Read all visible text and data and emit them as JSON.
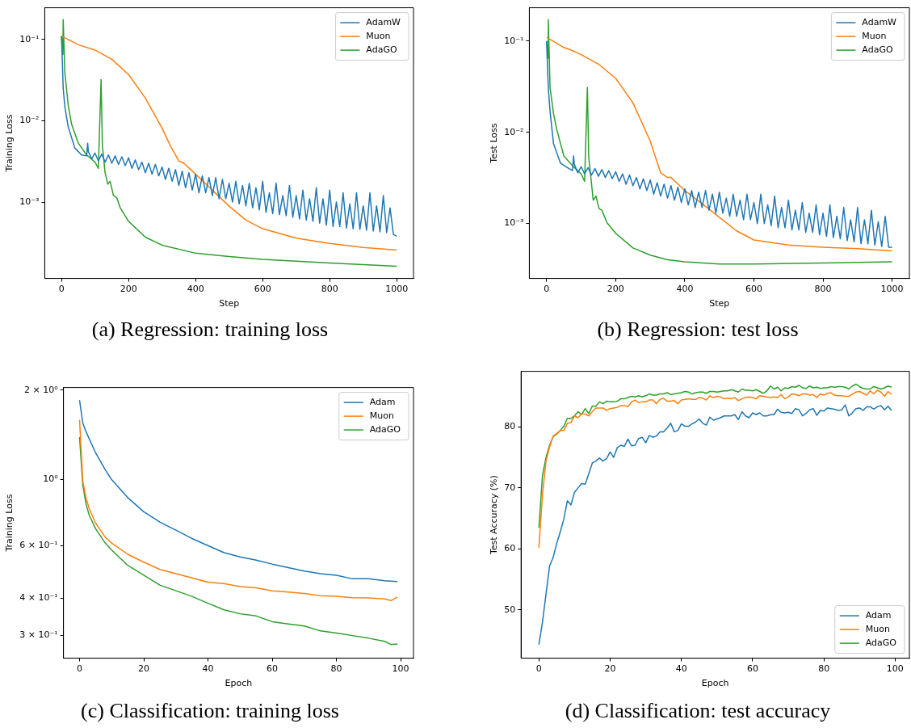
{
  "chart_data": [
    {
      "type": "line",
      "title": "(a) Regression: training loss",
      "xlabel": "Step",
      "ylabel": "Training Loss",
      "log": "y",
      "legend": "top right",
      "xlim": [
        -50,
        1050
      ],
      "xticks": [
        0,
        200,
        400,
        600,
        800,
        1000
      ],
      "ylim": [
        0.000115,
        0.245
      ],
      "yticks": [
        {
          "value": 0.1,
          "label": "10⁻¹"
        },
        {
          "value": 0.01,
          "label": "10⁻²"
        },
        {
          "value": 0.001,
          "label": "10⁻³"
        }
      ],
      "series": [
        {
          "name": "AdamW",
          "color": "#1f77b4",
          "x": [
            0,
            5,
            10,
            20,
            40,
            60,
            75,
            78,
            80,
            90,
            100,
            110,
            120,
            130,
            140,
            150,
            160,
            170,
            180,
            190,
            200,
            210,
            220,
            230,
            240,
            250,
            260,
            270,
            280,
            290,
            300,
            310,
            320,
            330,
            340,
            350,
            360,
            370,
            380,
            390,
            400,
            410,
            420,
            430,
            440,
            450,
            460,
            470,
            480,
            490,
            500,
            510,
            520,
            530,
            540,
            550,
            560,
            570,
            580,
            590,
            600,
            610,
            620,
            630,
            640,
            650,
            660,
            670,
            680,
            690,
            700,
            710,
            720,
            730,
            740,
            750,
            760,
            770,
            780,
            790,
            800,
            810,
            820,
            830,
            840,
            850,
            860,
            870,
            880,
            890,
            900,
            910,
            920,
            930,
            940,
            950,
            960,
            970,
            980,
            990,
            1000
          ],
          "values": [
            0.11,
            0.025,
            0.0148,
            0.0084,
            0.0046,
            0.0038,
            0.0037,
            0.0053,
            0.0042,
            0.0034,
            0.004,
            0.0032,
            0.0039,
            0.0031,
            0.0038,
            0.003,
            0.0037,
            0.0029,
            0.0036,
            0.0028,
            0.0035,
            0.0026,
            0.0033,
            0.0025,
            0.0031,
            0.0023,
            0.003,
            0.0022,
            0.0029,
            0.0021,
            0.0027,
            0.0019,
            0.0026,
            0.0018,
            0.0025,
            0.0016,
            0.0024,
            0.0015,
            0.0023,
            0.0014,
            0.0022,
            0.0013,
            0.0021,
            0.0013,
            0.002,
            0.0012,
            0.002,
            0.0011,
            0.0019,
            0.0011,
            0.0017,
            0.001,
            0.0018,
            0.00095,
            0.0016,
            0.0009,
            0.0017,
            0.00085,
            0.0015,
            0.0008,
            0.0018,
            0.00075,
            0.0013,
            0.00072,
            0.0017,
            0.0007,
            0.0012,
            0.00068,
            0.0016,
            0.00065,
            0.0012,
            0.00062,
            0.0014,
            0.0006,
            0.0011,
            0.00058,
            0.0015,
            0.00055,
            0.0011,
            0.00052,
            0.0014,
            0.0005,
            0.001,
            0.0005,
            0.0013,
            0.00048,
            0.00095,
            0.00047,
            0.0013,
            0.00046,
            0.0009,
            0.00045,
            0.0013,
            0.00044,
            0.0009,
            0.00043,
            0.0012,
            0.00042,
            0.00085,
            0.0004,
            0.00038
          ]
        },
        {
          "name": "Muon",
          "color": "#ff7f0e",
          "x": [
            0,
            50,
            100,
            150,
            200,
            250,
            300,
            325,
            350,
            365,
            400,
            450,
            500,
            550,
            600,
            700,
            800,
            900,
            1000
          ],
          "values": [
            0.11,
            0.086,
            0.074,
            0.057,
            0.037,
            0.019,
            0.0081,
            0.0049,
            0.0032,
            0.003,
            0.0022,
            0.0014,
            0.00089,
            0.0006,
            0.00047,
            0.00036,
            0.00031,
            0.000276,
            0.000257
          ]
        },
        {
          "name": "AdaGO",
          "color": "#2ca02c",
          "x": [
            0,
            4,
            5,
            10,
            20,
            30,
            50,
            75,
            100,
            110,
            118,
            122,
            130,
            138,
            145,
            155,
            165,
            175,
            200,
            250,
            300,
            400,
            500,
            600,
            800,
            1000
          ],
          "values": [
            0.11,
            0.065,
            0.175,
            0.039,
            0.0155,
            0.0091,
            0.0053,
            0.0038,
            0.0031,
            0.0026,
            0.032,
            0.0049,
            0.0023,
            0.00166,
            0.0018,
            0.0012,
            0.00113,
            0.00085,
            0.00058,
            0.00037,
            0.000295,
            0.000235,
            0.000214,
            0.000197,
            0.000178,
            0.000162
          ]
        }
      ]
    },
    {
      "type": "line",
      "title": "(b) Regression: test loss",
      "xlabel": "Step",
      "ylabel": "Test Loss",
      "log": "y",
      "legend": "top right",
      "xlim": [
        -50,
        1050
      ],
      "xticks": [
        0,
        200,
        400,
        600,
        800,
        1000
      ],
      "ylim": [
        0.00025,
        0.232
      ],
      "yticks": [
        {
          "value": 0.1,
          "label": "10⁻¹"
        },
        {
          "value": 0.01,
          "label": "10⁻²"
        },
        {
          "value": 0.001,
          "label": "10⁻³"
        }
      ],
      "series": [
        {
          "name": "AdamW",
          "color": "#1f77b4",
          "x": [
            0,
            5,
            10,
            20,
            40,
            60,
            75,
            78,
            80,
            90,
            100,
            110,
            120,
            130,
            140,
            150,
            160,
            170,
            180,
            190,
            200,
            210,
            220,
            230,
            240,
            250,
            260,
            270,
            280,
            290,
            300,
            310,
            320,
            330,
            340,
            350,
            360,
            370,
            380,
            390,
            400,
            410,
            420,
            430,
            440,
            450,
            460,
            470,
            480,
            490,
            500,
            510,
            520,
            530,
            540,
            550,
            560,
            570,
            580,
            590,
            600,
            610,
            620,
            630,
            640,
            650,
            660,
            670,
            680,
            690,
            700,
            710,
            720,
            730,
            740,
            750,
            760,
            770,
            780,
            790,
            800,
            810,
            820,
            830,
            840,
            850,
            860,
            870,
            880,
            890,
            900,
            910,
            920,
            930,
            940,
            950,
            960,
            970,
            980,
            990,
            1000
          ],
          "values": [
            0.1,
            0.03,
            0.017,
            0.0075,
            0.0046,
            0.0041,
            0.0038,
            0.0055,
            0.0045,
            0.0036,
            0.0042,
            0.0035,
            0.0041,
            0.0034,
            0.004,
            0.0033,
            0.0039,
            0.0032,
            0.0038,
            0.0031,
            0.0037,
            0.0029,
            0.0035,
            0.0027,
            0.0034,
            0.0026,
            0.0032,
            0.0024,
            0.0031,
            0.0023,
            0.003,
            0.0021,
            0.0028,
            0.002,
            0.0027,
            0.0019,
            0.0026,
            0.0018,
            0.0025,
            0.0017,
            0.0024,
            0.0016,
            0.0023,
            0.0015,
            0.0022,
            0.0015,
            0.0023,
            0.0014,
            0.0021,
            0.0013,
            0.0022,
            0.0013,
            0.0019,
            0.0012,
            0.0021,
            0.0012,
            0.0018,
            0.0011,
            0.0021,
            0.0011,
            0.0017,
            0.001,
            0.0021,
            0.001,
            0.0016,
            0.00095,
            0.002,
            0.0009,
            0.0015,
            0.0009,
            0.0018,
            0.00085,
            0.0014,
            0.00085,
            0.0017,
            0.0008,
            0.0013,
            0.0008,
            0.0016,
            0.00075,
            0.0013,
            0.00072,
            0.0016,
            0.0007,
            0.0012,
            0.00068,
            0.0015,
            0.00065,
            0.0011,
            0.00063,
            0.0015,
            0.0006,
            0.0011,
            0.0006,
            0.0014,
            0.00058,
            0.00105,
            0.00056,
            0.0012,
            0.00055,
            0.00055
          ]
        },
        {
          "name": "Muon",
          "color": "#ff7f0e",
          "x": [
            0,
            50,
            70,
            100,
            150,
            200,
            250,
            300,
            330,
            350,
            360,
            400,
            450,
            500,
            550,
            600,
            700,
            800,
            900,
            1000
          ],
          "values": [
            0.11,
            0.085,
            0.08,
            0.071,
            0.056,
            0.039,
            0.021,
            0.008,
            0.0036,
            0.0032,
            0.0032,
            0.0023,
            0.00165,
            0.00117,
            0.00083,
            0.00066,
            0.00058,
            0.00055,
            0.00053,
            0.0005
          ]
        },
        {
          "name": "AdaGO",
          "color": "#2ca02c",
          "x": [
            0,
            4,
            5,
            10,
            20,
            30,
            50,
            75,
            100,
            110,
            118,
            122,
            135,
            143,
            152,
            160,
            175,
            200,
            250,
            300,
            350,
            400,
            500,
            600,
            800,
            1000
          ],
          "values": [
            0.1,
            0.065,
            0.172,
            0.031,
            0.016,
            0.0105,
            0.0055,
            0.0043,
            0.0035,
            0.0029,
            0.031,
            0.0053,
            0.0018,
            0.002,
            0.00145,
            0.0014,
            0.00102,
            0.00078,
            0.00054,
            0.00045,
            0.0004,
            0.00038,
            0.00036,
            0.00036,
            0.00037,
            0.00038
          ]
        }
      ]
    },
    {
      "type": "line",
      "title": "(c) Classification: training loss",
      "xlabel": "Epoch",
      "ylabel": "Training Loss",
      "log": "y",
      "legend": "top right",
      "xlim": [
        -5,
        104
      ],
      "xticks": [
        0,
        20,
        40,
        60,
        80,
        100
      ],
      "ylim": [
        0.251,
        2.04
      ],
      "yticks": [
        {
          "value": 2,
          "label": "2 × 10⁰"
        },
        {
          "value": 1,
          "label": "10⁰"
        },
        {
          "value": 0.6,
          "label": "6 × 10⁻¹"
        },
        {
          "value": 0.4,
          "label": "4 × 10⁻¹"
        },
        {
          "value": 0.3,
          "label": "3 × 10⁻¹"
        }
      ],
      "series": [
        {
          "name": "Adam",
          "color": "#1f77b4",
          "x": [
            0,
            1,
            2,
            5,
            8,
            10,
            15,
            20,
            25,
            30,
            35,
            40,
            45,
            50,
            55,
            60,
            65,
            70,
            75,
            80,
            85,
            90,
            95,
            99
          ],
          "values": [
            1.85,
            1.55,
            1.45,
            1.23,
            1.08,
            1.0,
            0.87,
            0.78,
            0.72,
            0.676,
            0.634,
            0.6,
            0.568,
            0.55,
            0.536,
            0.52,
            0.506,
            0.493,
            0.483,
            0.477,
            0.464,
            0.464,
            0.457,
            0.454
          ]
        },
        {
          "name": "Muon",
          "color": "#ff7f0e",
          "x": [
            0,
            1,
            2,
            3,
            5,
            8,
            10,
            15,
            20,
            25,
            30,
            35,
            40,
            45,
            50,
            55,
            60,
            65,
            70,
            75,
            80,
            85,
            90,
            95,
            97,
            99
          ],
          "values": [
            1.59,
            0.99,
            0.87,
            0.8,
            0.714,
            0.64,
            0.612,
            0.561,
            0.528,
            0.499,
            0.483,
            0.467,
            0.452,
            0.447,
            0.437,
            0.433,
            0.423,
            0.419,
            0.414,
            0.407,
            0.405,
            0.401,
            0.4,
            0.397,
            0.392,
            0.403
          ]
        },
        {
          "name": "AdaGO",
          "color": "#2ca02c",
          "x": [
            0,
            1,
            2,
            3,
            5,
            8,
            10,
            15,
            20,
            25,
            30,
            35,
            40,
            45,
            50,
            55,
            60,
            65,
            70,
            75,
            80,
            85,
            90,
            95,
            97,
            99
          ],
          "values": [
            1.39,
            0.96,
            0.83,
            0.76,
            0.684,
            0.612,
            0.58,
            0.515,
            0.477,
            0.442,
            0.423,
            0.405,
            0.384,
            0.365,
            0.354,
            0.348,
            0.333,
            0.327,
            0.322,
            0.31,
            0.305,
            0.299,
            0.293,
            0.286,
            0.279,
            0.28
          ]
        }
      ]
    },
    {
      "type": "line",
      "title": "(d) Classification: test accuracy",
      "xlabel": "Epoch",
      "ylabel": "Test Accuracy (%)",
      "legend": "bottom right",
      "xlim": [
        -5,
        104
      ],
      "xticks": [
        0,
        20,
        40,
        60,
        80,
        100
      ],
      "ylim": [
        42.1,
        89.1
      ],
      "yticks": [
        50,
        60,
        70,
        80
      ],
      "x": [
        0,
        1,
        2,
        3,
        4,
        5,
        6,
        7,
        8,
        9,
        10,
        11,
        12,
        13,
        14,
        15,
        16,
        17,
        18,
        19,
        20,
        21,
        22,
        23,
        24,
        25,
        26,
        27,
        28,
        29,
        30,
        31,
        32,
        33,
        34,
        35,
        36,
        37,
        38,
        39,
        40,
        41,
        42,
        43,
        44,
        45,
        46,
        47,
        48,
        49,
        50,
        51,
        52,
        53,
        54,
        55,
        56,
        57,
        58,
        59,
        60,
        61,
        62,
        63,
        64,
        65,
        66,
        67,
        68,
        69,
        70,
        71,
        72,
        73,
        74,
        75,
        76,
        77,
        78,
        79,
        80,
        81,
        82,
        83,
        84,
        85,
        86,
        87,
        88,
        89,
        90,
        91,
        92,
        93,
        94,
        95,
        96,
        97,
        98,
        99
      ],
      "series": [
        {
          "name": "Adam",
          "color": "#1f77b4",
          "values": [
            44.3,
            48.0,
            52.6,
            57.2,
            58.6,
            60.9,
            62.8,
            64.9,
            67.9,
            67.2,
            69.3,
            70.0,
            70.7,
            70.6,
            72.3,
            74.1,
            74.4,
            74.9,
            74.4,
            74.8,
            75.9,
            75.0,
            76.6,
            77.0,
            76.8,
            78.0,
            76.9,
            77.0,
            78.1,
            78.3,
            77.4,
            78.6,
            78.3,
            78.5,
            79.2,
            79.2,
            79.8,
            80.6,
            79.2,
            79.4,
            80.5,
            80.1,
            80.1,
            80.5,
            80.8,
            81.3,
            80.6,
            80.3,
            81.6,
            81.1,
            81.3,
            81.5,
            81.8,
            81.8,
            81.8,
            82.0,
            81.2,
            82.5,
            81.8,
            81.5,
            82.3,
            82.0,
            82.3,
            81.8,
            81.8,
            82.0,
            82.0,
            82.9,
            82.4,
            82.3,
            82.4,
            82.2,
            83.0,
            82.8,
            81.8,
            82.2,
            82.8,
            83.0,
            81.9,
            82.7,
            82.6,
            83.1,
            83.0,
            82.9,
            82.7,
            82.8,
            83.6,
            81.8,
            82.3,
            83.0,
            83.1,
            82.7,
            83.3,
            83.3,
            82.9,
            83.3,
            83.5,
            82.8,
            83.4,
            82.7
          ]
        },
        {
          "name": "Muon",
          "color": "#ff7f0e",
          "values": [
            60.2,
            68.8,
            74.4,
            76.7,
            78.5,
            78.9,
            79.4,
            79.4,
            80.6,
            80.7,
            81.8,
            81.5,
            82.2,
            82.1,
            81.8,
            82.5,
            83.1,
            83.1,
            83.1,
            82.7,
            83.0,
            83.1,
            83.2,
            83.5,
            83.5,
            83.3,
            84.1,
            84.4,
            84.0,
            84.1,
            84.1,
            84.4,
            84.4,
            83.8,
            84.5,
            84.7,
            84.2,
            84.2,
            84.3,
            83.8,
            84.4,
            84.5,
            84.6,
            84.5,
            84.5,
            84.8,
            84.7,
            84.4,
            85.1,
            84.8,
            85.0,
            84.9,
            84.6,
            84.7,
            84.6,
            84.8,
            84.3,
            84.6,
            84.8,
            84.9,
            84.8,
            84.6,
            85.1,
            85.0,
            84.9,
            84.8,
            84.9,
            84.8,
            85.3,
            84.6,
            84.9,
            85.4,
            85.3,
            85.1,
            85.4,
            85.4,
            85.2,
            85.3,
            84.8,
            85.4,
            85.2,
            85.5,
            85.6,
            85.2,
            85.1,
            85.1,
            85.0,
            85.0,
            85.4,
            85.7,
            85.8,
            85.5,
            85.2,
            85.9,
            85.4,
            86.0,
            85.7,
            85.0,
            85.8,
            85.3
          ]
        },
        {
          "name": "AdaGO",
          "color": "#2ca02c",
          "values": [
            63.5,
            72.0,
            75.0,
            77.0,
            78.4,
            78.8,
            79.4,
            80.1,
            81.4,
            81.4,
            81.8,
            82.5,
            82.0,
            83.0,
            82.2,
            83.4,
            83.4,
            84.1,
            83.8,
            84.2,
            84.1,
            84.1,
            84.2,
            84.6,
            84.6,
            84.8,
            85.0,
            84.9,
            85.1,
            84.9,
            85.1,
            85.4,
            85.2,
            85.2,
            85.4,
            85.4,
            85.6,
            85.3,
            85.4,
            85.5,
            85.6,
            85.8,
            85.7,
            85.4,
            85.6,
            85.7,
            85.7,
            85.5,
            85.8,
            85.8,
            85.7,
            85.8,
            85.9,
            85.9,
            86.1,
            85.9,
            85.7,
            86.2,
            86.0,
            86.0,
            85.9,
            86.1,
            85.8,
            85.5,
            85.9,
            86.7,
            86.2,
            86.5,
            85.9,
            86.4,
            86.3,
            86.6,
            86.5,
            86.8,
            86.4,
            86.3,
            86.7,
            86.4,
            86.5,
            86.3,
            86.4,
            86.4,
            86.6,
            86.5,
            86.6,
            86.6,
            86.5,
            86.2,
            86.7,
            87.0,
            86.6,
            86.3,
            86.2,
            86.2,
            86.6,
            86.4,
            86.2,
            86.4,
            86.7,
            86.5
          ]
        }
      ]
    }
  ]
}
